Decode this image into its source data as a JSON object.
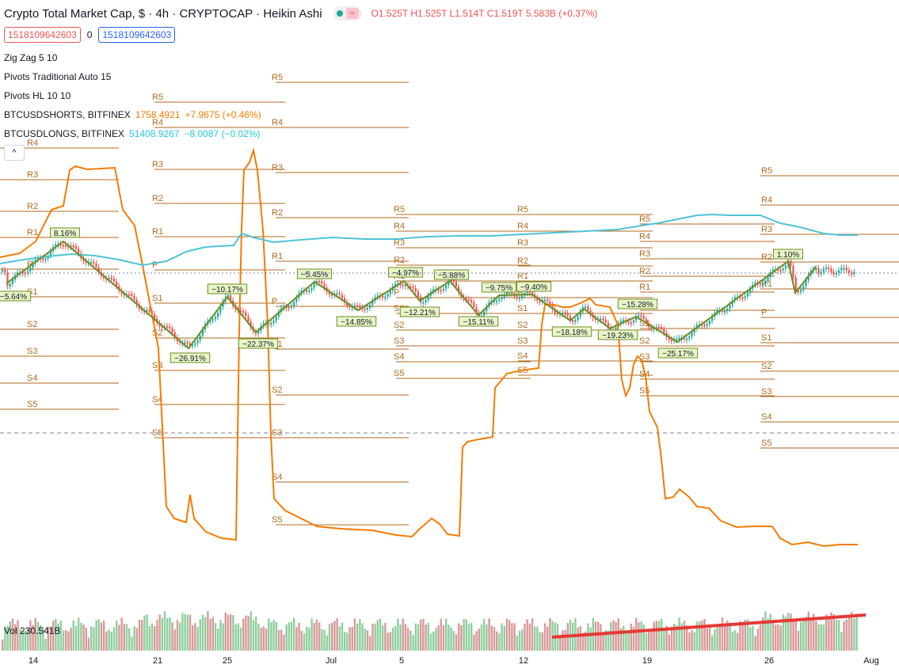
{
  "header": {
    "title": "Crypto Total Market Cap, $ · 4h · CRYPTOCAP · Heikin Ashi",
    "ohlc": {
      "o": "O1.525T",
      "h": "H1.525T",
      "l": "L1.514T",
      "c": "C1.519T",
      "chg": "5.583B (+0.37%)"
    },
    "price_box_sell": "1518109642603",
    "spread": "0",
    "price_box_buy": "1518109642603"
  },
  "indicators": {
    "zigzag": "Zig Zag 5 10",
    "pivots_trad": "Pivots Traditional Auto 15",
    "pivots_hl": "Pivots HL 10 10",
    "shorts_name": "BTCUSDSHORTS, BITFINEX",
    "shorts_val": "1758.4921",
    "shorts_chg": "+7.9675 (+0.46%)",
    "longs_name": "BTCUSDLONGS, BITFINEX",
    "longs_val": "51408.9267",
    "longs_chg": "−8.0087 (−0.02%)"
  },
  "volume_label": "Vol 230.541B",
  "collapse_icon": "chevron-up-icon",
  "colors": {
    "up": "#26a69a",
    "down": "#ef5350",
    "zigzag": "#6b8e23",
    "pivot": "#b06a1c",
    "shorts": "#f57c00",
    "longs": "#4ec3d6",
    "trend": "#e53935"
  },
  "chart_data": {
    "type": "candlestick",
    "x_ticks": [
      "14",
      "21",
      "25",
      "Jul",
      "5",
      "12",
      "19",
      "26",
      "Aug"
    ],
    "pivot_groups": [
      {
        "labels": [
          "R4",
          "R3",
          "R2",
          "R1",
          "P",
          "S1",
          "S2",
          "S3",
          "S4",
          "S5"
        ]
      },
      {
        "labels": [
          "R5",
          "R4",
          "R3",
          "R2",
          "R1",
          "P",
          "S1",
          "S2",
          "S3",
          "S4",
          "S5"
        ]
      },
      {
        "labels": [
          "R5",
          "R4",
          "R3",
          "R2",
          "R1",
          "P",
          "S1",
          "S2",
          "S3",
          "S4",
          "S5"
        ]
      },
      {
        "labels": [
          "R5",
          "R4",
          "R3",
          "R2",
          "R1",
          "P",
          "S1",
          "S2",
          "S3",
          "S4",
          "S5"
        ]
      },
      {
        "labels": [
          "R5",
          "R4",
          "R3",
          "R2",
          "R1",
          "P",
          "S1",
          "S2",
          "S3",
          "S4",
          "S5"
        ]
      },
      {
        "labels": [
          "R5",
          "R4",
          "R3",
          "R2",
          "R1",
          "P",
          "S1",
          "S2",
          "S3",
          "S4",
          "S5"
        ]
      },
      {
        "labels": [
          "R5",
          "R4",
          "R3",
          "R2",
          "R1",
          "P",
          "S1",
          "S2",
          "S3",
          "S4",
          "S5"
        ]
      }
    ],
    "zigzag_labels": [
      "−5.64%",
      "8.16%",
      "−26.91%",
      "−10.17%",
      "−22.37%",
      "−5.45%",
      "−14.85%",
      "−4.97%",
      "−12.21%",
      "−5.88%",
      "−15.11%",
      "−9.75%",
      "−9.40%",
      "−18.18%",
      "−19.23%",
      "−15.28%",
      "−25.17%",
      "1.10%"
    ]
  }
}
